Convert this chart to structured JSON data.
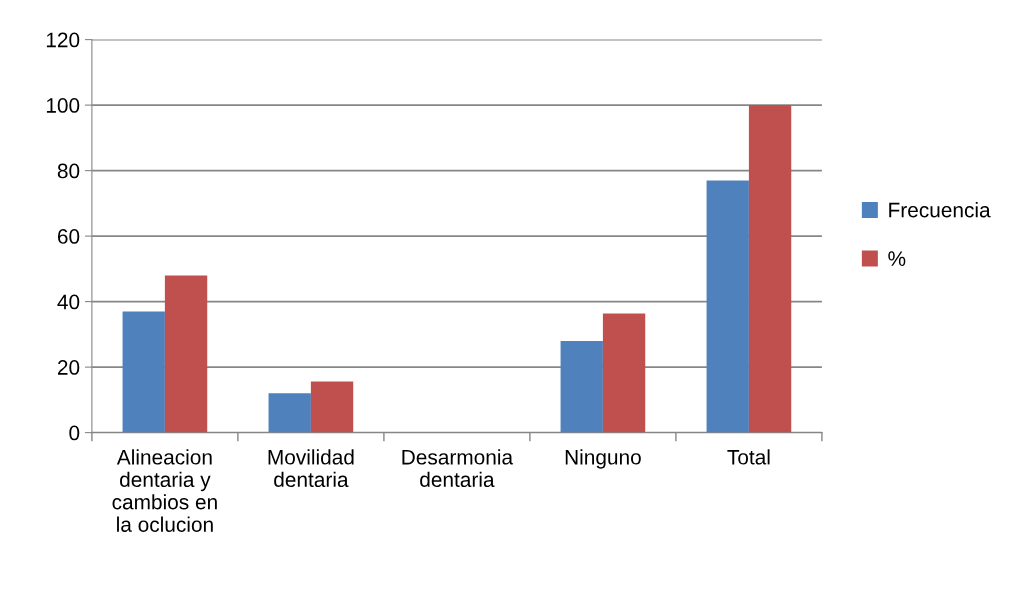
{
  "chart_data": {
    "type": "bar",
    "categories": [
      "Alineacion\ndentaria y\ncambios en\nla oclucion",
      "Movilidad\ndentaria",
      "Desarmonia\ndentaria",
      "Ninguno",
      "Total"
    ],
    "series": [
      {
        "name": "Frecuencia",
        "color": "#4f81bd",
        "values": [
          37,
          12,
          0,
          28,
          77
        ]
      },
      {
        "name": "%",
        "color": "#c0504d",
        "values": [
          48,
          15.6,
          0,
          36.4,
          100
        ]
      }
    ],
    "ylim": [
      0,
      120
    ],
    "yticks": [
      0,
      20,
      40,
      60,
      80,
      100,
      120
    ],
    "grid": "y",
    "legend": "right"
  }
}
